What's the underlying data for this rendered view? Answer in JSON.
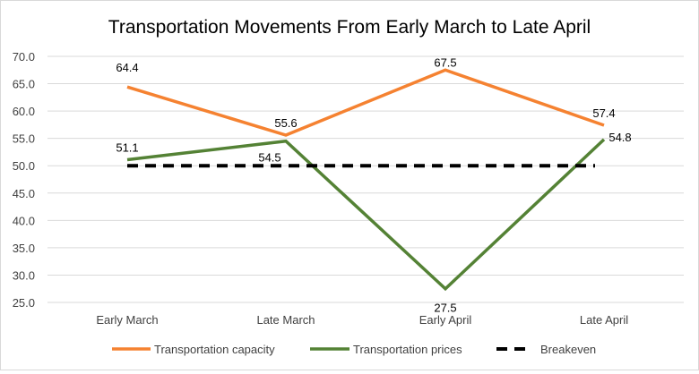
{
  "chart_data": {
    "type": "line",
    "title": "Transportation Movements From Early March to Late April",
    "xlabel": "",
    "ylabel": "",
    "categories": [
      "Early March",
      "Late March",
      "Early April",
      "Late April"
    ],
    "ylim": [
      25.0,
      70.0
    ],
    "yticks": [
      "25.0",
      "30.0",
      "35.0",
      "40.0",
      "45.0",
      "50.0",
      "55.0",
      "60.0",
      "65.0",
      "70.0"
    ],
    "grid": true,
    "legend_position": "bottom",
    "series": [
      {
        "name": "Transportation capacity",
        "color": "#f58231",
        "dashed": false,
        "values": [
          64.4,
          55.6,
          67.5,
          57.4
        ],
        "labels": [
          "64.4",
          "55.6",
          "67.5",
          "57.4"
        ]
      },
      {
        "name": "Transportation prices",
        "color": "#548235",
        "dashed": false,
        "values": [
          51.1,
          54.5,
          27.5,
          54.8
        ],
        "labels": [
          "51.1",
          "54.5",
          "27.5",
          "54.8"
        ]
      },
      {
        "name": "Breakeven",
        "color": "#000000",
        "dashed": true,
        "values": [
          50,
          50,
          50,
          50
        ],
        "labels": []
      }
    ]
  }
}
